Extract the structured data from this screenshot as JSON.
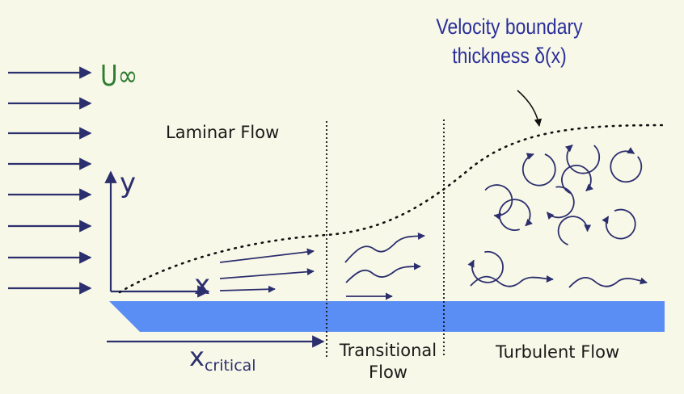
{
  "labels": {
    "u_inf": "U∞",
    "y_axis": "y",
    "x_axis": "x",
    "x_critical_base": "x",
    "x_critical_sub": "critical",
    "laminar": "Laminar Flow",
    "transitional_1": "Transitional",
    "transitional_2": "Flow",
    "turbulent": "Turbulent Flow",
    "boundary_1": "Velocity boundary",
    "boundary_2": "thickness δ(x)"
  },
  "colors": {
    "background": "#f8f8e8",
    "plate": "#5b8ef5",
    "arrows": "#2c2f6e",
    "u_inf": "#2e7d32",
    "annotation": "#2a2f9a"
  }
}
